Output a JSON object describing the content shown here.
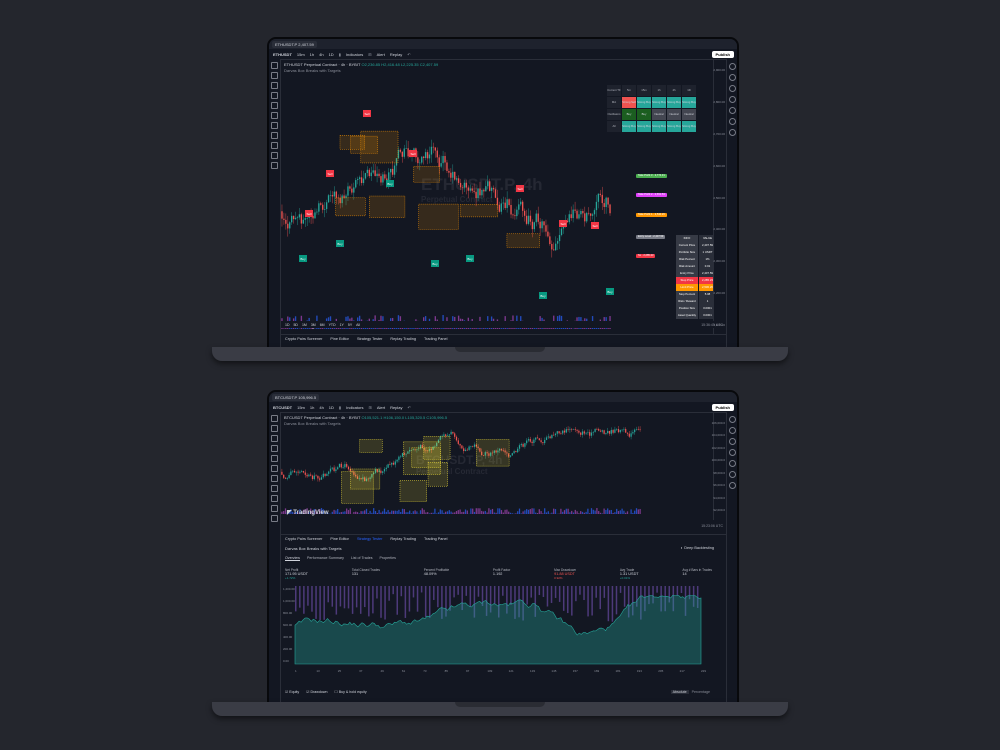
{
  "laptop1": {
    "tab_title": "ETHUSDT.P",
    "tab_price": "2,407.59",
    "toolbar": {
      "symbol": "ETHUSDT",
      "intervals": [
        "15m",
        "1h",
        "4h",
        "1D"
      ],
      "indicators": "Indicators",
      "alert": "Alert",
      "replay": "Replay",
      "publish": "Publish"
    },
    "legend": {
      "title": "ETHUSDT Perpetual Contract · 4h · BYBIT",
      "values": "O2,236.85 H2,416.48 L2,225.35 C2,407.59",
      "indicator": "Darvas Box Breaks with Targets"
    },
    "watermark": "ETHUSDT.P, 4h",
    "watermark_sub": "Perpetual Contract",
    "tf_table": {
      "headers": [
        "Current TF",
        "5m",
        "15m",
        "1h",
        "4h",
        "1D"
      ],
      "rows": [
        [
          "MA",
          "Strong Sell",
          "Strong Buy",
          "Strong Buy",
          "Strong Buy",
          "Strong Buy"
        ],
        [
          "Oscillators",
          "Buy",
          "Buy",
          "Neutral",
          "Neutral",
          "Neutral"
        ],
        [
          "All",
          "Strong Buy",
          "Strong Buy",
          "Strong Buy",
          "Strong Buy",
          "Strong Buy"
        ]
      ]
    },
    "targets": [
      {
        "label": "Take Profit 3 · 2,774.31",
        "color": "#4caf50"
      },
      {
        "label": "Take Profit 2 · 2,651.53",
        "color": "#e040fb"
      },
      {
        "label": "Take Profit 1 · 2,530.26",
        "color": "#ff9800"
      },
      {
        "label": "Entry Level · 2,407.59",
        "color": "#787b86"
      },
      {
        "label": "SL · 2,285.23",
        "color": "#f23645"
      }
    ],
    "info_table": [
      [
        "INFO",
        "VALUE"
      ],
      [
        "Current Price",
        "2,407.59"
      ],
      [
        "Portfolio Size",
        "1 USDT"
      ],
      [
        "Risk Percent",
        "1%"
      ],
      [
        "Risk Amount",
        "0.01"
      ],
      [
        "Entry Price",
        "2,407.59"
      ],
      [
        "Stop Price",
        "2,285.23"
      ],
      [
        "Limit Price",
        "2,530.26"
      ],
      [
        "Stop Percent",
        "5.08"
      ],
      [
        "Risk / Reward",
        "1"
      ],
      [
        "Position Size",
        "0.0001"
      ],
      [
        "Asset Quantity",
        "0.0001"
      ]
    ],
    "price_ticks": [
      "2,900.00",
      "2,800.00",
      "2,700.00",
      "2,600.00",
      "2,500.00",
      "2,400.00",
      "2,300.00",
      "2,200.00",
      "2,100.00"
    ],
    "range": [
      "1D",
      "5D",
      "1M",
      "3M",
      "6M",
      "YTD",
      "1Y",
      "5Y",
      "All"
    ],
    "clock": "15:36:45 UTC",
    "bottom_tabs": [
      "Crypto Pairs Screener",
      "Pine Editor",
      "Strategy Tester",
      "Replay Trading",
      "Trading Panel"
    ],
    "logo": "TradingView",
    "signals": [
      "Buy",
      "Sell"
    ]
  },
  "laptop2": {
    "tab_title": "BTCUSDT.P",
    "tab_price": "105,996.5",
    "toolbar": {
      "symbol": "BTCUSDT",
      "intervals": [
        "15m",
        "1h",
        "4h",
        "1D"
      ],
      "indicators": "Indicators",
      "alert": "Alert",
      "replay": "Replay",
      "publish": "Publish"
    },
    "legend": {
      "title": "BTCUSDT Perpetual Contract · 4h · BYBIT",
      "values": "O105,521.1 H106,150.0 L105,320.5 C105,996.5",
      "indicator": "Darvas Box Breaks with Targets"
    },
    "watermark": "BTCUSDT.P, 4h",
    "watermark_sub": "Perpetual Contract",
    "price_ticks": [
      "106,000.0",
      "104,000.0",
      "102,000.0",
      "100,000.0",
      "98,000.0",
      "96,000.0",
      "94,000.0",
      "92,000.0"
    ],
    "clock": "15:23:06 UTC",
    "bottom_tabs": [
      "Crypto Pairs Screener",
      "Pine Editor",
      "Strategy Tester",
      "Replay Trading",
      "Trading Panel"
    ],
    "logo": "TradingView",
    "strategy": {
      "name": "Darvas Box Breaks with Targets",
      "deep": "Deep Backtesting",
      "tabs": [
        "Overview",
        "Performance Summary",
        "List of Trades",
        "Properties"
      ],
      "metrics": [
        {
          "label": "Net Profit",
          "value": "171.95 USDT",
          "pct": "+1.72%",
          "neg": false
        },
        {
          "label": "Total Closed Trades",
          "value": "131",
          "pct": "",
          "neg": false
        },
        {
          "label": "Percent Profitable",
          "value": "48.09%",
          "pct": "",
          "neg": false
        },
        {
          "label": "Profit Factor",
          "value": "1.192",
          "pct": "",
          "neg": false
        },
        {
          "label": "Max Drawdown",
          "value": "91.88 USDT",
          "pct": "0.92%",
          "neg": true
        },
        {
          "label": "Avg Trade",
          "value": "1.31 USDT",
          "pct": "+0.01%",
          "neg": false
        },
        {
          "label": "Avg # Bars in Trades",
          "value": "14",
          "pct": "",
          "neg": false
        }
      ],
      "y_ticks": [
        "1,200.00",
        "1,000.00",
        "800.00",
        "600.00",
        "400.00",
        "200.00",
        "0.00"
      ],
      "x_ticks": [
        "1",
        "13",
        "25",
        "37",
        "49",
        "61",
        "73",
        "85",
        "97",
        "109",
        "121",
        "133",
        "145",
        "157",
        "169",
        "181",
        "193",
        "205",
        "217",
        "229"
      ],
      "legend": [
        "Equity",
        "Drawdown",
        "Buy & hold equity"
      ],
      "modes": [
        "Absolute",
        "Percentage"
      ]
    }
  }
}
